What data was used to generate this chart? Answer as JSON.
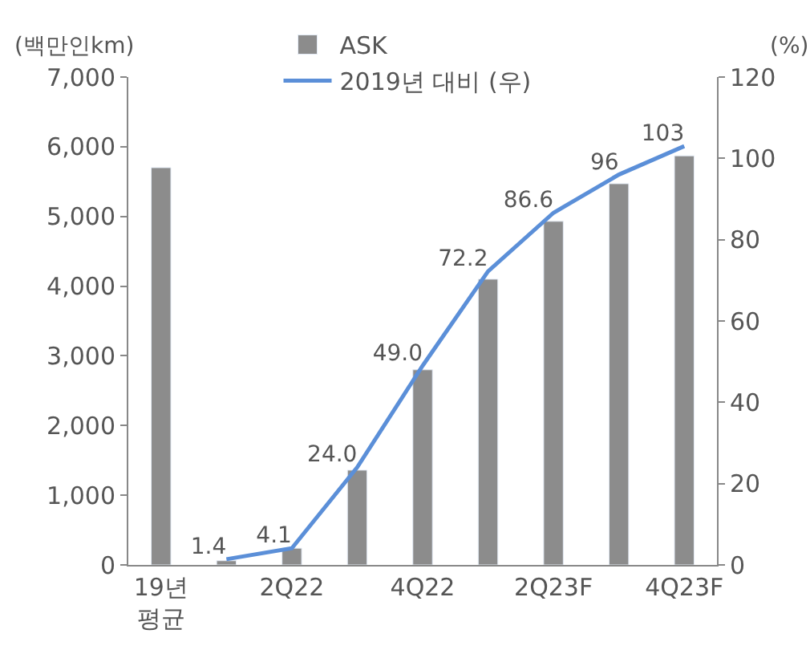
{
  "chart_data": {
    "type": "bar",
    "categories": [
      "19년\n평균",
      null,
      "2Q22",
      null,
      "4Q22",
      null,
      "2Q23F",
      null,
      "4Q23F"
    ],
    "ylabel": "(백만인km)",
    "y2label": "(%)",
    "ylim": [
      0,
      7000
    ],
    "yticks": [
      {
        "value": 0,
        "label": "0"
      },
      {
        "value": 1000,
        "label": "1,000"
      },
      {
        "value": 2000,
        "label": "2,000"
      },
      {
        "value": 3000,
        "label": "3,000"
      },
      {
        "value": 4000,
        "label": "4,000"
      },
      {
        "value": 5000,
        "label": "5,000"
      },
      {
        "value": 6000,
        "label": "6,000"
      },
      {
        "value": 7000,
        "label": "7,000"
      }
    ],
    "y2lim": [
      0,
      120
    ],
    "y2ticks": [
      0,
      20,
      40,
      60,
      80,
      100,
      120
    ],
    "series": [
      {
        "name": "ASK",
        "color": "#8c8c8c",
        "values": [
          5700,
          60,
          240,
          1360,
          2800,
          4100,
          4930,
          5470,
          5870
        ]
      },
      {
        "name": "2019년 대비 (우)",
        "type": "line",
        "axis": "y2",
        "color": "#5b8fd8",
        "values": [
          null,
          1.4,
          4.1,
          24.0,
          49.0,
          72.2,
          86.6,
          96,
          103
        ],
        "value_labels": [
          null,
          "1.4",
          "4.1",
          "24.0",
          "49.0",
          "72.2",
          "86.6",
          "96",
          "103"
        ]
      }
    ],
    "legend": "top",
    "marker": "none",
    "line_style": "solid"
  }
}
